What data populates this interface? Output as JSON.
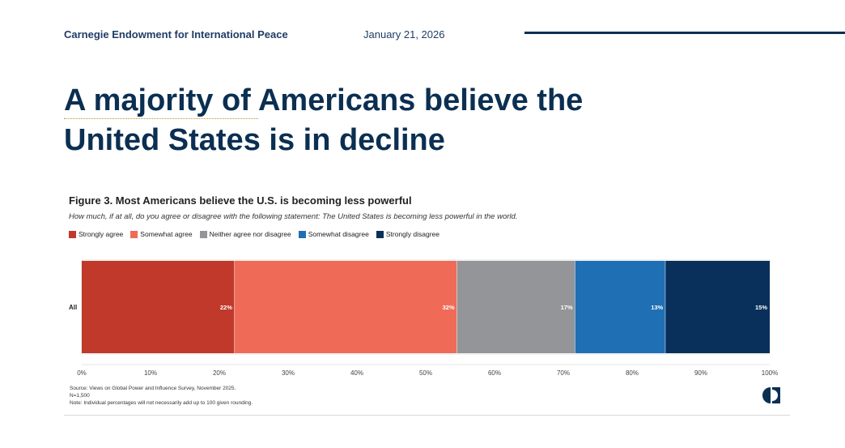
{
  "header": {
    "org": "Carnegie Endowment for International Peace",
    "date": "January 21, 2026"
  },
  "headline": "A majority of Americans believe the United States is in decline",
  "chart_data": {
    "type": "bar",
    "orientation": "horizontal",
    "stacked": true,
    "title": "Figure 3. Most Americans believe the U.S. is becoming less powerful",
    "subtitle": "How much, if at all, do you agree or disagree with the following statement: The United States is becoming less powerful in the world.",
    "categories": [
      "All"
    ],
    "series": [
      {
        "name": "Strongly agree",
        "values": [
          22
        ],
        "label": "22%",
        "color": "#c0392b"
      },
      {
        "name": "Somewhat agree",
        "values": [
          32
        ],
        "label": "32%",
        "color": "#f06b57"
      },
      {
        "name": "Neither agree nor disagree",
        "values": [
          17
        ],
        "label": "17%",
        "color": "#939598"
      },
      {
        "name": "Somewhat disagree",
        "values": [
          13
        ],
        "label": "13%",
        "color": "#1f6fb5"
      },
      {
        "name": "Strongly disagree",
        "values": [
          15
        ],
        "label": "15%",
        "color": "#08305a"
      }
    ],
    "xlim": [
      0,
      100
    ],
    "x_ticks": [
      "0%",
      "10%",
      "20%",
      "30%",
      "40%",
      "50%",
      "60%",
      "70%",
      "80%",
      "90%",
      "100%"
    ],
    "legend_position": "top-left",
    "grid": false
  },
  "source": {
    "line1": "Source: Views on Global Power and Influence Survey, November 2025.",
    "line2": "N=1,500",
    "line3": "Note: Individual percentages will not necessarily add up to 100 given rounding."
  }
}
